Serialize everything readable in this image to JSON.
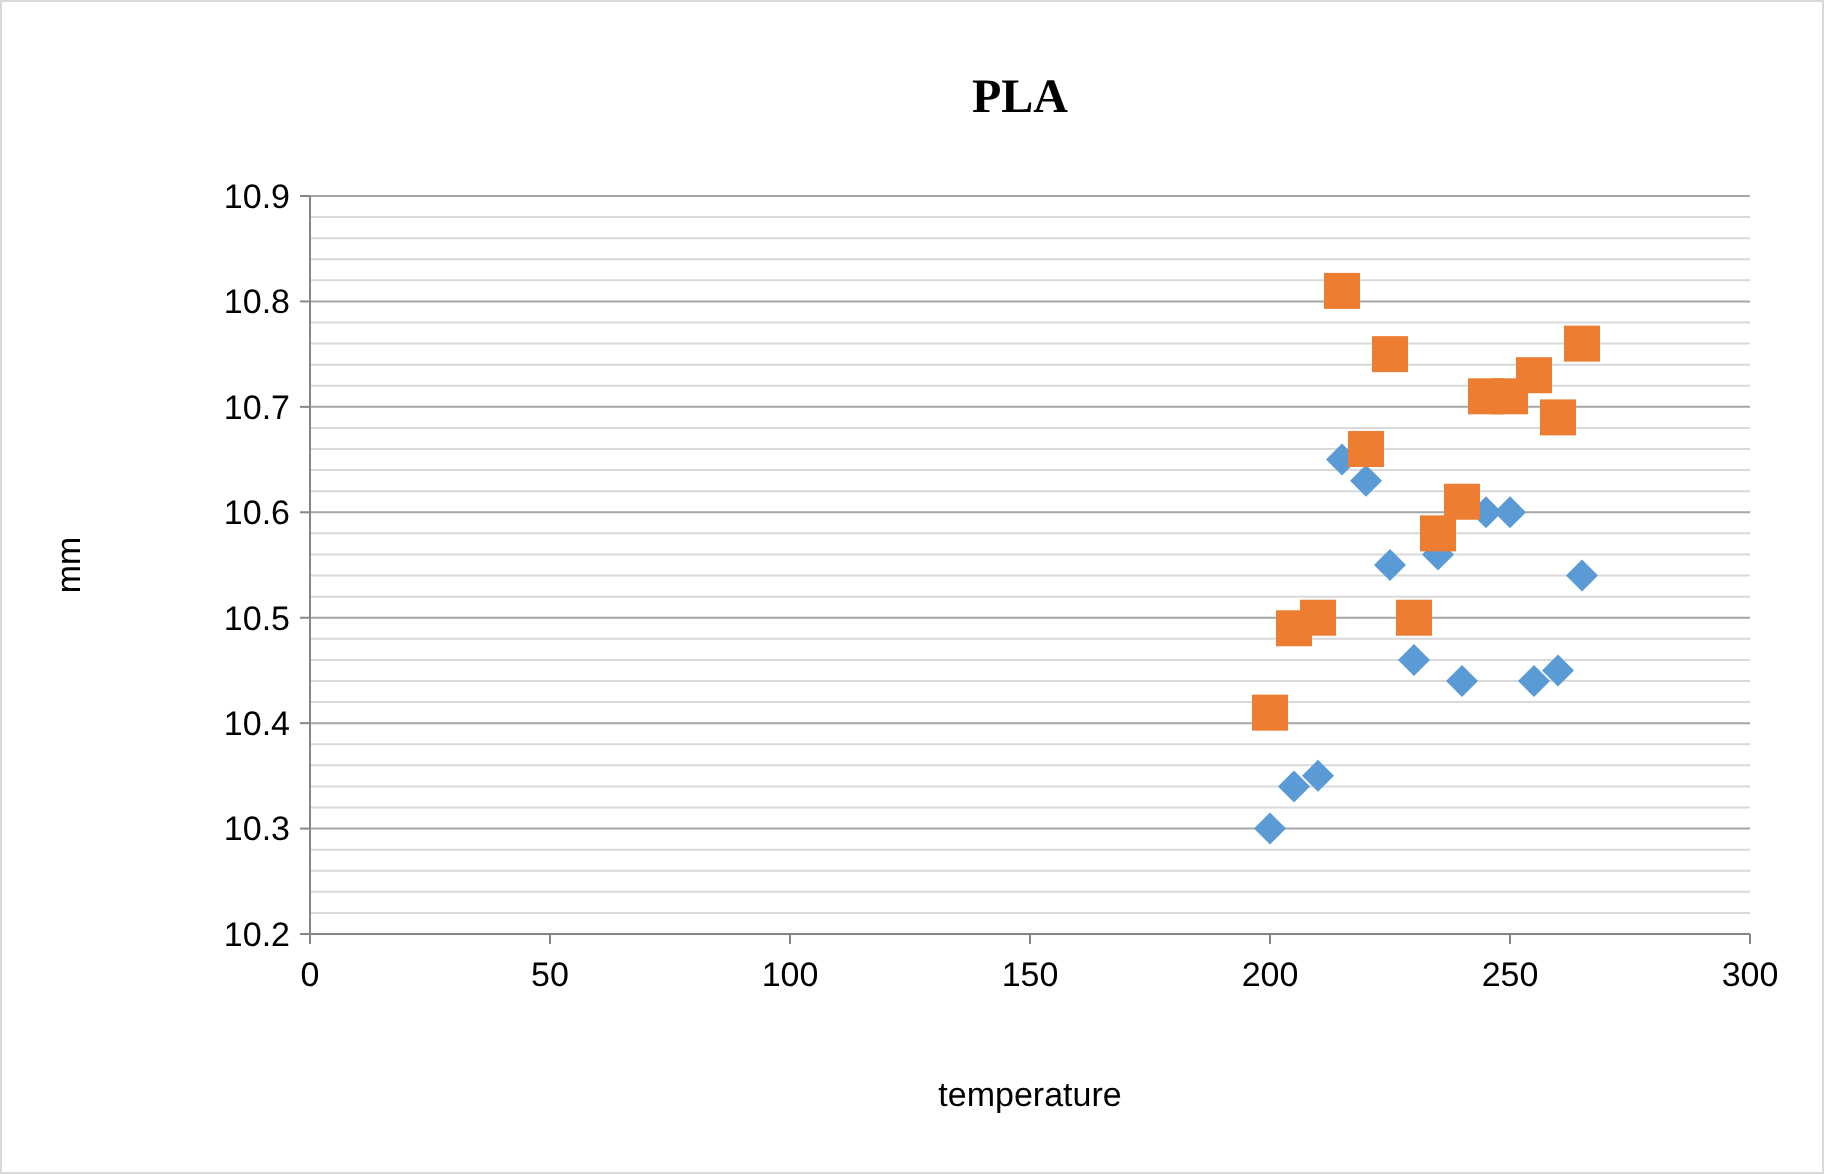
{
  "chart_data": {
    "type": "scatter",
    "title": "PLA",
    "xlabel": "temperature",
    "ylabel": "mm",
    "xlim": [
      0,
      300
    ],
    "xticks": [
      0,
      50,
      100,
      150,
      200,
      250,
      300
    ],
    "ylim": [
      10.2,
      10.9
    ],
    "yticks": [
      10.2,
      10.3,
      10.4,
      10.5,
      10.6,
      10.7,
      10.8,
      10.9
    ],
    "grid": "y",
    "series": [
      {
        "color": "#5b9bd5",
        "marker": "diamond",
        "x": [
          200,
          205,
          210,
          215,
          220,
          225,
          230,
          235,
          240,
          245,
          250,
          255,
          260,
          265
        ],
        "values": [
          10.3,
          10.34,
          10.35,
          10.65,
          10.63,
          10.55,
          10.46,
          10.56,
          10.44,
          10.6,
          10.6,
          10.44,
          10.45,
          10.54
        ]
      },
      {
        "color": "#ed7d31",
        "marker": "square",
        "x": [
          200,
          205,
          210,
          215,
          220,
          225,
          230,
          235,
          240,
          245,
          250,
          255,
          260,
          265
        ],
        "values": [
          10.41,
          10.49,
          10.5,
          10.81,
          10.66,
          10.75,
          10.5,
          10.58,
          10.61,
          10.71,
          10.71,
          10.73,
          10.69,
          10.76
        ]
      }
    ]
  }
}
